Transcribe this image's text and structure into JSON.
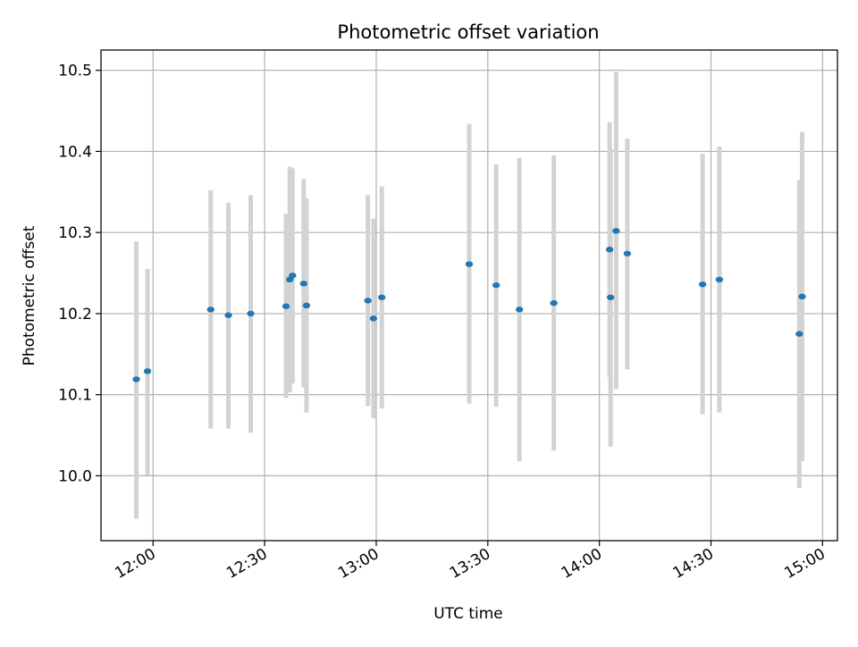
{
  "chart_data": {
    "type": "scatter",
    "title": "Photometric offset variation",
    "xlabel": "UTC time",
    "ylabel": "Photometric offset",
    "xlim": [
      "11:46",
      "15:04"
    ],
    "ylim": [
      9.92,
      10.525
    ],
    "xticks": [
      "12:00",
      "12:30",
      "13:00",
      "13:30",
      "14:00",
      "14:30",
      "15:00"
    ],
    "yticks": [
      "10.0",
      "10.1",
      "10.2",
      "10.3",
      "10.4",
      "10.5"
    ],
    "grid": true,
    "marker_color": "#1f77b4",
    "errorbar_color": "#d3d3d3",
    "series": [
      {
        "name": "",
        "points": [
          {
            "t": "11:55:30",
            "y": 10.119,
            "lo": 9.947,
            "hi": 10.289
          },
          {
            "t": "11:58:30",
            "y": 10.129,
            "lo": 10.001,
            "hi": 10.255
          },
          {
            "t": "12:15:30",
            "y": 10.205,
            "lo": 10.058,
            "hi": 10.352
          },
          {
            "t": "12:20:15",
            "y": 10.198,
            "lo": 10.058,
            "hi": 10.337
          },
          {
            "t": "12:26:15",
            "y": 10.2,
            "lo": 10.053,
            "hi": 10.346
          },
          {
            "t": "12:35:45",
            "y": 10.209,
            "lo": 10.096,
            "hi": 10.323
          },
          {
            "t": "12:36:45",
            "y": 10.242,
            "lo": 10.103,
            "hi": 10.381
          },
          {
            "t": "12:37:30",
            "y": 10.247,
            "lo": 10.114,
            "hi": 10.379
          },
          {
            "t": "12:40:30",
            "y": 10.237,
            "lo": 10.109,
            "hi": 10.366
          },
          {
            "t": "12:41:15",
            "y": 10.21,
            "lo": 10.078,
            "hi": 10.342
          },
          {
            "t": "12:57:45",
            "y": 10.216,
            "lo": 10.086,
            "hi": 10.346
          },
          {
            "t": "12:59:15",
            "y": 10.194,
            "lo": 10.071,
            "hi": 10.317
          },
          {
            "t": "13:01:30",
            "y": 10.22,
            "lo": 10.083,
            "hi": 10.357
          },
          {
            "t": "13:25:00",
            "y": 10.261,
            "lo": 10.089,
            "hi": 10.434
          },
          {
            "t": "13:32:15",
            "y": 10.235,
            "lo": 10.085,
            "hi": 10.384
          },
          {
            "t": "13:38:30",
            "y": 10.205,
            "lo": 10.018,
            "hi": 10.392
          },
          {
            "t": "13:47:45",
            "y": 10.213,
            "lo": 10.031,
            "hi": 10.395
          },
          {
            "t": "14:02:45",
            "y": 10.279,
            "lo": 10.121,
            "hi": 10.436
          },
          {
            "t": "14:03:00",
            "y": 10.22,
            "lo": 10.036,
            "hi": 10.404
          },
          {
            "t": "14:04:30",
            "y": 10.302,
            "lo": 10.107,
            "hi": 10.498
          },
          {
            "t": "14:07:30",
            "y": 10.274,
            "lo": 10.131,
            "hi": 10.416
          },
          {
            "t": "14:27:45",
            "y": 10.236,
            "lo": 10.076,
            "hi": 10.397
          },
          {
            "t": "14:32:15",
            "y": 10.242,
            "lo": 10.078,
            "hi": 10.406
          },
          {
            "t": "14:53:45",
            "y": 10.175,
            "lo": 9.985,
            "hi": 10.365
          },
          {
            "t": "14:54:30",
            "y": 10.221,
            "lo": 10.018,
            "hi": 10.424
          }
        ]
      }
    ]
  }
}
